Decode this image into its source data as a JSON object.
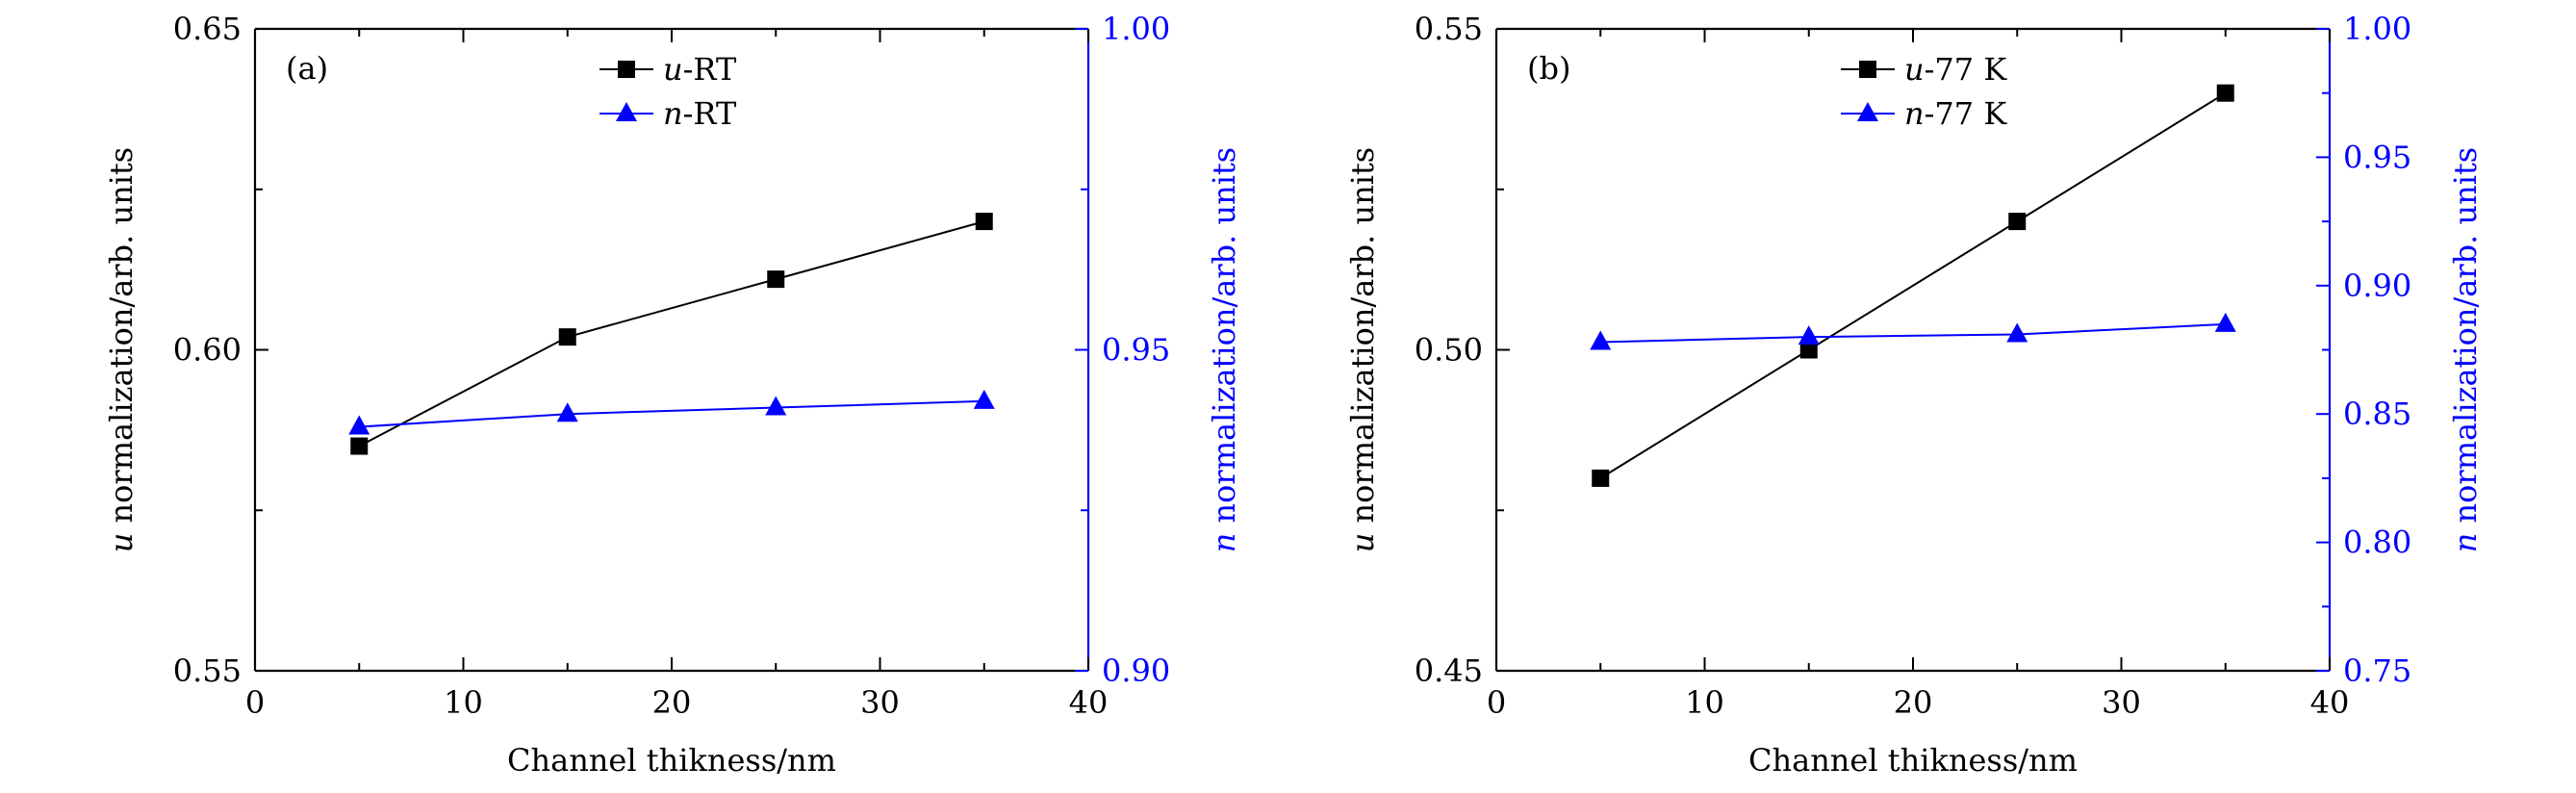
{
  "colors": {
    "left_axis": "#000000",
    "right_axis": "#0000ff",
    "series_u": "#000000",
    "series_n": "#0000ff"
  },
  "chart_data": [
    {
      "type": "line",
      "panel_label": "(a)",
      "xlabel": "Channel thikness/nm",
      "ylabel_left": {
        "symbol": "u",
        "text": " normalization/arb. units"
      },
      "ylabel_right": {
        "symbol": "n",
        "text": " normalization/arb. units"
      },
      "xlim": [
        0,
        40
      ],
      "ylim_left": [
        0.55,
        0.65
      ],
      "ylim_right": [
        0.9,
        1.0
      ],
      "x_ticks": [
        "0",
        "10",
        "20",
        "30",
        "40"
      ],
      "y_ticks_left": [
        "0.55",
        "0.60",
        "0.65"
      ],
      "y_ticks_right": [
        "0.90",
        "0.95",
        "1.00"
      ],
      "legend_position": "top-center",
      "x": [
        5,
        15,
        25,
        35
      ],
      "series": [
        {
          "name_symbol": "u",
          "name_rest": "-RT",
          "axis": "left",
          "marker": "square",
          "values": [
            0.585,
            0.602,
            0.611,
            0.62
          ]
        },
        {
          "name_symbol": "n",
          "name_rest": "-RT",
          "axis": "right",
          "marker": "triangle",
          "values": [
            0.938,
            0.94,
            0.941,
            0.942
          ]
        }
      ]
    },
    {
      "type": "line",
      "panel_label": "(b)",
      "xlabel": "Channel thikness/nm",
      "ylabel_left": {
        "symbol": "u",
        "text": " normalization/arb. units"
      },
      "ylabel_right": {
        "symbol": "n",
        "text": " normalization/arb. units"
      },
      "xlim": [
        0,
        40
      ],
      "ylim_left": [
        0.45,
        0.55
      ],
      "ylim_right": [
        0.75,
        1.0
      ],
      "x_ticks": [
        "0",
        "10",
        "20",
        "30",
        "40"
      ],
      "y_ticks_left": [
        "0.45",
        "0.50",
        "0.55"
      ],
      "y_ticks_right": [
        "0.75",
        "0.80",
        "0.85",
        "0.90",
        "0.95",
        "1.00"
      ],
      "legend_position": "top-center",
      "x": [
        5,
        15,
        25,
        35
      ],
      "series": [
        {
          "name_symbol": "u",
          "name_rest": "-77 K",
          "axis": "left",
          "marker": "square",
          "values": [
            0.48,
            0.5,
            0.52,
            0.54
          ]
        },
        {
          "name_symbol": "n",
          "name_rest": "-77 K",
          "axis": "right",
          "marker": "triangle",
          "values": [
            0.878,
            0.88,
            0.881,
            0.885
          ]
        }
      ]
    }
  ]
}
